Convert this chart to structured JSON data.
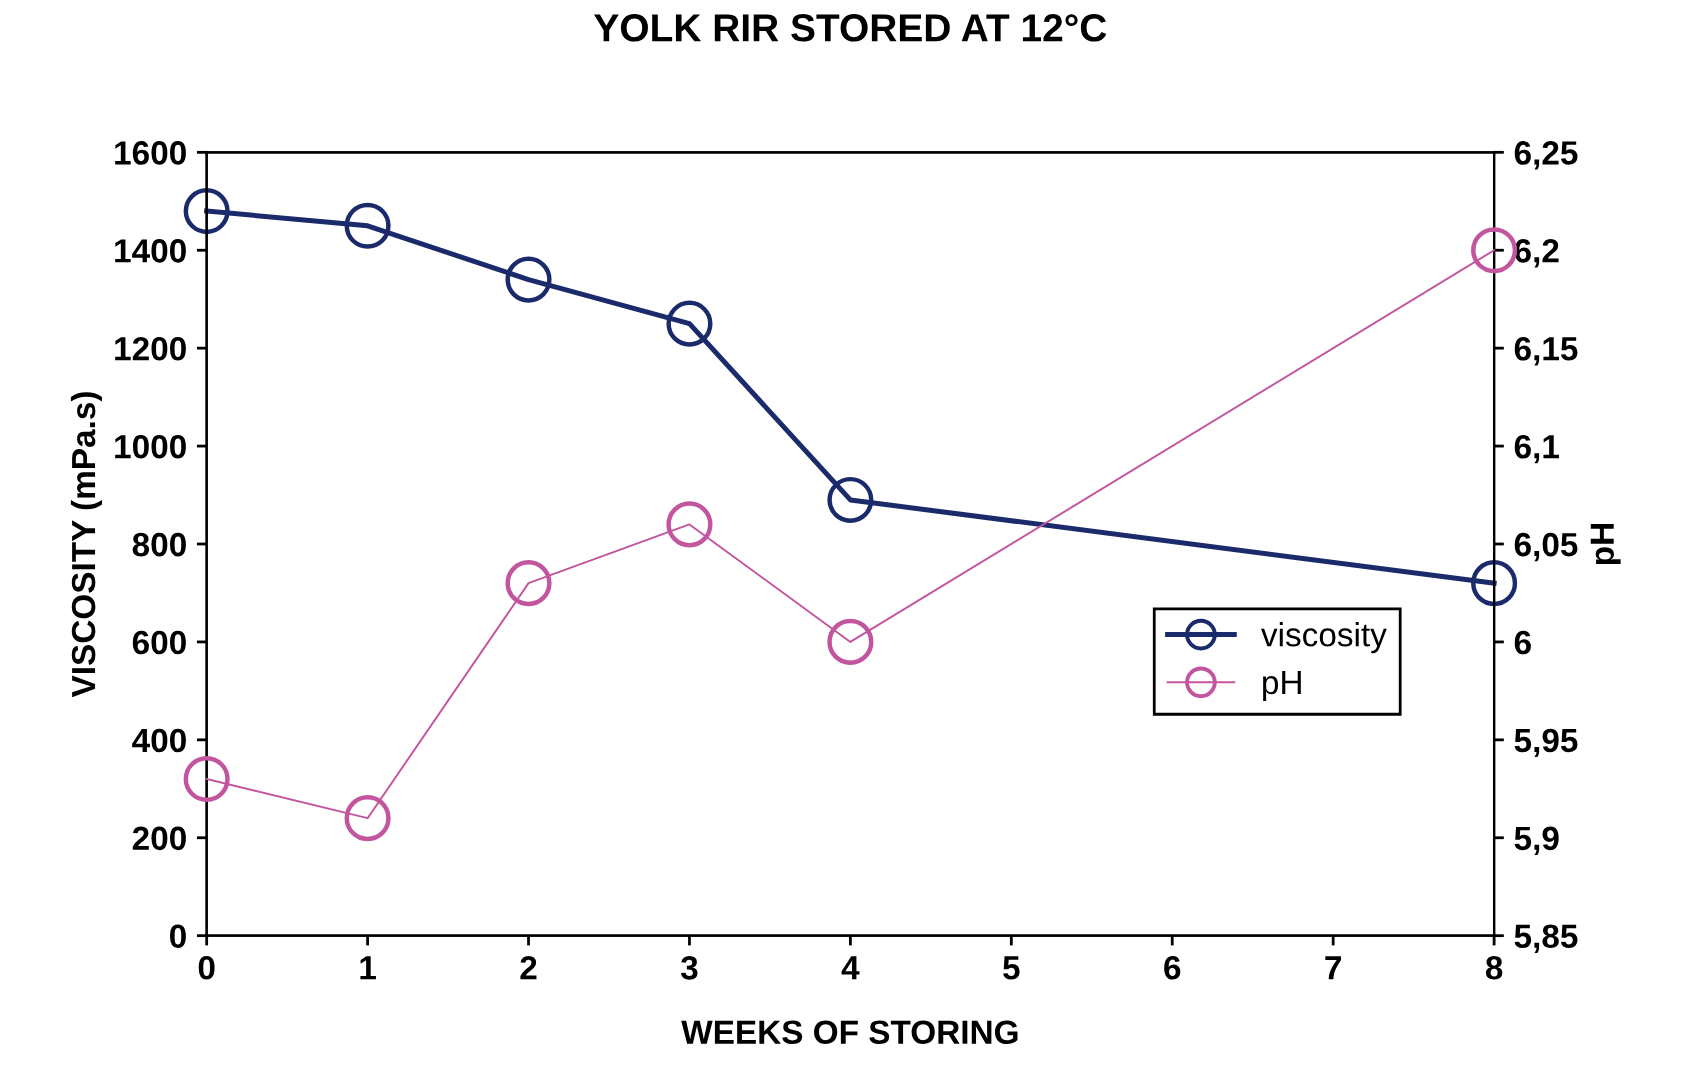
{
  "chart_data": {
    "type": "line",
    "title": "YOLK RIR STORED AT 12°C",
    "xlabel": "WEEKS OF STORING",
    "ylabel": "VISCOSITY (mPa.s)",
    "y2label": "pH",
    "x": [
      0,
      1,
      2,
      3,
      4,
      8
    ],
    "series": [
      {
        "name": "viscosity",
        "color": "#1b2a6b",
        "values": [
          1480,
          1450,
          1340,
          1250,
          890,
          720
        ]
      },
      {
        "name": "pH",
        "color": "#c2559e",
        "axis": "y2",
        "values": [
          5.93,
          5.91,
          6.03,
          6.06,
          6.0,
          6.2
        ]
      }
    ],
    "xlim": [
      0,
      8
    ],
    "xticks": [
      0,
      1,
      2,
      3,
      4,
      5,
      6,
      7,
      8
    ],
    "ylim": [
      0,
      1600
    ],
    "yticks": [
      0,
      200,
      400,
      600,
      800,
      1000,
      1200,
      1400,
      1600
    ],
    "y2lim": [
      5.85,
      6.25
    ],
    "y2ticks": [
      {
        "value": 5.85,
        "label": "5,85"
      },
      {
        "value": 5.9,
        "label": "5,9"
      },
      {
        "value": 5.95,
        "label": "5,95"
      },
      {
        "value": 6,
        "label": "6"
      },
      {
        "value": 6.05,
        "label": "6,05"
      },
      {
        "value": 6.1,
        "label": "6,1"
      },
      {
        "value": 6.15,
        "label": "6,15"
      },
      {
        "value": 6.2,
        "label": "6,2"
      },
      {
        "value": 6.25,
        "label": "6,25"
      }
    ],
    "marker": "circle",
    "line_style": "solid",
    "grid": false,
    "legend": "center right"
  }
}
